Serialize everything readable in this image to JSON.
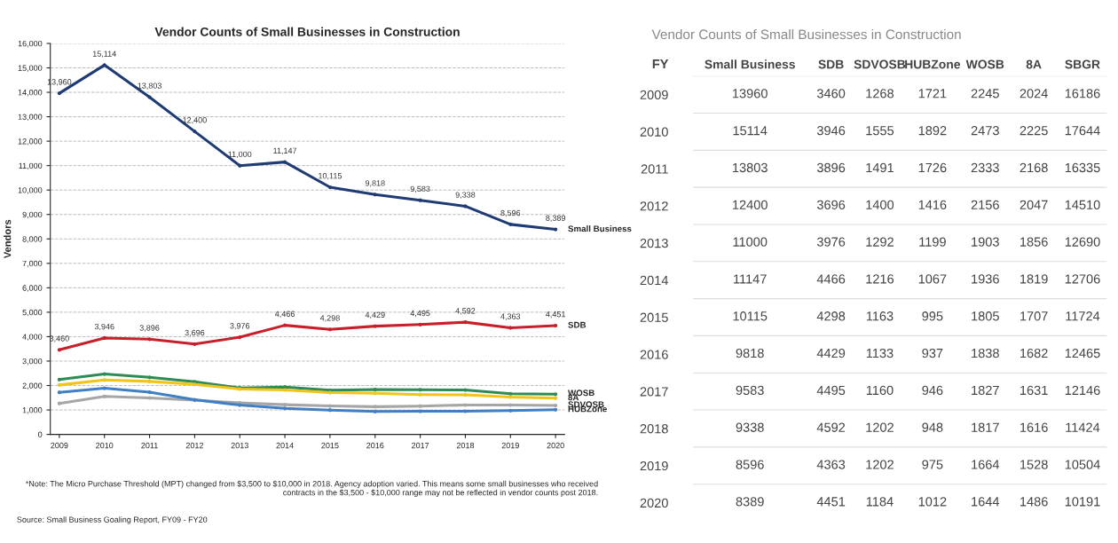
{
  "chart_data": [
    {
      "type": "line",
      "title": "Vendor Counts of Small Businesses in Construction",
      "ylabel": "Vendors",
      "categories": [
        "2009",
        "2010",
        "2011",
        "2012",
        "2013",
        "2014",
        "2015",
        "2016",
        "2017",
        "2018",
        "2019",
        "2020"
      ],
      "series": [
        {
          "name": "Small Business",
          "color": "#1f3b73",
          "values": [
            13960,
            15114,
            13803,
            12400,
            11000,
            11147,
            10115,
            9818,
            9583,
            9338,
            8596,
            8389
          ],
          "value_labels": [
            "13,960",
            "15,114",
            "13,803",
            "12,400",
            "11,000",
            "11,147",
            "10,115",
            "9,818",
            "9,583",
            "9,338",
            "8,596",
            "8,389"
          ]
        },
        {
          "name": "SDB",
          "color": "#c8202a",
          "values": [
            3460,
            3946,
            3896,
            3696,
            3976,
            4466,
            4298,
            4429,
            4495,
            4592,
            4363,
            4451
          ],
          "value_labels": [
            "3,460",
            "3,946",
            "3,896",
            "3,696",
            "3,976",
            "4,466",
            "4,298",
            "4,429",
            "4,495",
            "4,592",
            "4,363",
            "4,451"
          ]
        },
        {
          "name": "SDVOSB",
          "color": "#a6a6a6",
          "values": [
            1268,
            1555,
            1491,
            1400,
            1292,
            1216,
            1163,
            1133,
            1160,
            1202,
            1202,
            1184
          ]
        },
        {
          "name": "HUBZone",
          "color": "#3f7fc4",
          "values": [
            1721,
            1892,
            1726,
            1416,
            1199,
            1067,
            995,
            937,
            946,
            948,
            975,
            1012
          ]
        },
        {
          "name": "WOSB",
          "color": "#2e8b57",
          "values": [
            2245,
            2473,
            2333,
            2156,
            1903,
            1936,
            1805,
            1838,
            1827,
            1817,
            1664,
            1644
          ]
        },
        {
          "name": "8A",
          "color": "#f2c318",
          "values": [
            2024,
            2225,
            2168,
            2047,
            1856,
            1819,
            1707,
            1682,
            1631,
            1616,
            1528,
            1486
          ]
        }
      ],
      "ylim": [
        0,
        16000
      ],
      "yticks": [
        {
          "value": 0,
          "label": "0"
        },
        {
          "value": 1000,
          "label": "1,000"
        },
        {
          "value": 2000,
          "label": "2,000"
        },
        {
          "value": 3000,
          "label": "3,000"
        },
        {
          "value": 4000,
          "label": "4,000"
        },
        {
          "value": 5000,
          "label": "5,000"
        },
        {
          "value": 6000,
          "label": "6,000"
        },
        {
          "value": 7000,
          "label": "7,000"
        },
        {
          "value": 8000,
          "label": "8,000"
        },
        {
          "value": 9000,
          "label": "9,000"
        },
        {
          "value": 10000,
          "label": "10,000"
        },
        {
          "value": 11000,
          "label": "11,000"
        },
        {
          "value": 12000,
          "label": "12,000"
        },
        {
          "value": 13000,
          "label": "13,000"
        },
        {
          "value": 14000,
          "label": "14,000"
        },
        {
          "value": 15000,
          "label": "15,000"
        },
        {
          "value": 16000,
          "label": "16,000"
        }
      ],
      "grid": "y",
      "marker": "circle",
      "annotations": [
        "*Note: The Micro Purchase Threshold (MPT) changed from $3,500 to $10,000 in 2018. Agency adoption varied. This means some small businesses who received contracts in the $3,500 - $10,000 range may not be reflected in vendor counts post 2018.",
        "Source: Small Business Goaling Report, FY09 - FY20"
      ]
    },
    {
      "type": "heatmap",
      "title": "Vendor Counts of Small Businesses in Construction",
      "annotations": [
        "FY"
      ],
      "data_labels": true,
      "categories": [
        "Small Business",
        "SDB",
        "SDVOSB",
        "HUBZone",
        "WOSB",
        "8A",
        "SBGR"
      ],
      "y_categories": [
        "2009",
        "2010",
        "2011",
        "2012",
        "2013",
        "2014",
        "2015",
        "2016",
        "2017",
        "2018",
        "2019",
        "2020"
      ],
      "cells": [
        [
          13960,
          3460,
          1268,
          1721,
          2245,
          2024,
          16186
        ],
        [
          15114,
          3946,
          1555,
          1892,
          2473,
          2225,
          17644
        ],
        [
          13803,
          3896,
          1491,
          1726,
          2333,
          2168,
          16335
        ],
        [
          12400,
          3696,
          1400,
          1416,
          2156,
          2047,
          14510
        ],
        [
          11000,
          3976,
          1292,
          1199,
          1903,
          1856,
          12690
        ],
        [
          11147,
          4466,
          1216,
          1067,
          1936,
          1819,
          12706
        ],
        [
          10115,
          4298,
          1163,
          995,
          1805,
          1707,
          11724
        ],
        [
          9818,
          4429,
          1133,
          937,
          1838,
          1682,
          12465
        ],
        [
          9583,
          4495,
          1160,
          946,
          1827,
          1631,
          12146
        ],
        [
          9338,
          4592,
          1202,
          948,
          1817,
          1616,
          11424
        ],
        [
          8596,
          4363,
          1202,
          975,
          1664,
          1528,
          10504
        ],
        [
          8389,
          4451,
          1184,
          1012,
          1644,
          1486,
          10191
        ]
      ]
    }
  ]
}
